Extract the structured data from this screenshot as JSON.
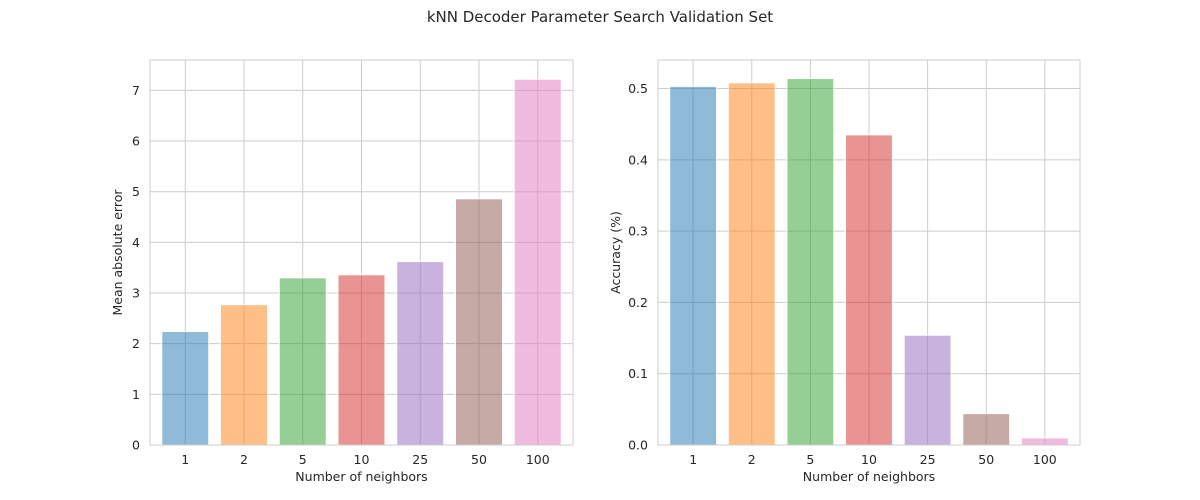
{
  "figure": {
    "title": "kNN Decoder Parameter Search Validation Set"
  },
  "chart_data": [
    {
      "type": "bar",
      "categories": [
        "1",
        "2",
        "5",
        "10",
        "25",
        "50",
        "100"
      ],
      "values": [
        2.24,
        2.77,
        3.3,
        3.36,
        3.62,
        4.86,
        7.22
      ],
      "title": "",
      "xlabel": "Number of neighbors",
      "ylabel": "Mean absolute error",
      "ylim": [
        0,
        7.6
      ],
      "yticks": [
        0,
        1,
        2,
        3,
        4,
        5,
        6,
        7
      ],
      "ytick_labels": [
        "0",
        "1",
        "2",
        "3",
        "4",
        "5",
        "6",
        "7"
      ],
      "colors": [
        "#1f77b4",
        "#ff7f0e",
        "#2ca02c",
        "#d62728",
        "#9467bd",
        "#8c564b",
        "#e377c2"
      ],
      "bar_opacity": 0.5,
      "grid": true
    },
    {
      "type": "bar",
      "categories": [
        "1",
        "2",
        "5",
        "10",
        "25",
        "50",
        "100"
      ],
      "values": [
        0.503,
        0.508,
        0.514,
        0.435,
        0.154,
        0.044,
        0.01
      ],
      "title": "",
      "xlabel": "Number of neighbors",
      "ylabel": "Accuracy (%)",
      "ylim": [
        0,
        0.54
      ],
      "yticks": [
        0.0,
        0.1,
        0.2,
        0.3,
        0.4,
        0.5
      ],
      "ytick_labels": [
        "0.0",
        "0.1",
        "0.2",
        "0.3",
        "0.4",
        "0.5"
      ],
      "colors": [
        "#1f77b4",
        "#ff7f0e",
        "#2ca02c",
        "#d62728",
        "#9467bd",
        "#8c564b",
        "#e377c2"
      ],
      "bar_opacity": 0.5,
      "grid": true
    }
  ]
}
